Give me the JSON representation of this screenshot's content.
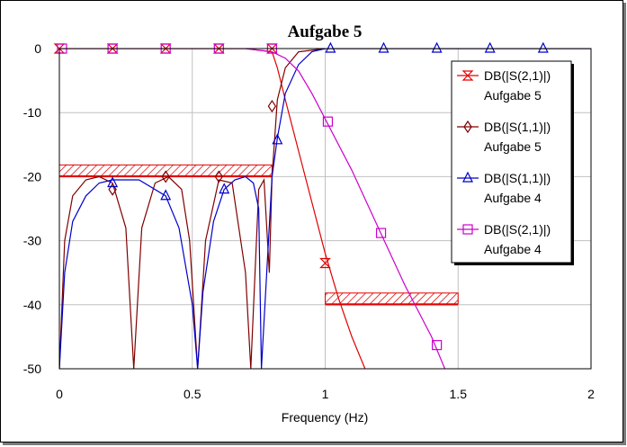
{
  "chart_data": {
    "type": "line",
    "title": "Aufgabe 5",
    "xlabel": "Frequency (Hz)",
    "ylabel": "",
    "xlim": [
      0,
      2
    ],
    "ylim": [
      -50,
      0
    ],
    "x_ticks": [
      "0",
      "0.5",
      "1",
      "1.5",
      "2"
    ],
    "y_ticks": [
      "0",
      "-10",
      "-20",
      "-30",
      "-40",
      "-50"
    ],
    "grid": true,
    "legend_position": "top-right",
    "series": [
      {
        "name": "DB(|S(2,1)|)",
        "sub": "Aufgabe 5",
        "color": "#e00000",
        "marker": "hourglass",
        "x": [
          0,
          0.7,
          0.8,
          0.82,
          0.85,
          0.9,
          0.95,
          1.0,
          1.05,
          1.1,
          1.15
        ],
        "y": [
          0,
          0,
          -0.5,
          -3,
          -8,
          -16,
          -24,
          -32,
          -39,
          -45,
          -50
        ],
        "markers": [
          [
            0,
            0
          ],
          [
            0.2,
            0
          ],
          [
            0.4,
            0
          ],
          [
            0.6,
            0
          ],
          [
            0.8,
            0
          ],
          [
            1.0,
            -33.5
          ]
        ]
      },
      {
        "name": "DB(|S(1,1)|)",
        "sub": "Aufgabe 5",
        "color": "#800000",
        "marker": "diamond",
        "x": [
          0,
          0.02,
          0.05,
          0.1,
          0.15,
          0.2,
          0.25,
          0.28,
          0.31,
          0.36,
          0.41,
          0.46,
          0.49,
          0.52,
          0.55,
          0.6,
          0.65,
          0.7,
          0.72,
          0.75,
          0.77,
          0.79,
          0.8,
          0.82,
          0.85,
          0.9,
          1.0,
          2.0
        ],
        "y": [
          -50,
          -30,
          -23,
          -20.5,
          -20,
          -21,
          -28,
          -50,
          -28,
          -21,
          -20,
          -22,
          -30,
          -50,
          -30,
          -20.5,
          -21,
          -35,
          -50,
          -22,
          -20.5,
          -35,
          -20,
          -8,
          -3,
          -0.5,
          0,
          0
        ],
        "markers": [
          [
            0.2,
            -22
          ],
          [
            0.4,
            -20
          ],
          [
            0.6,
            -20
          ],
          [
            0.8,
            -9
          ]
        ]
      },
      {
        "name": "DB(|S(1,1)|)",
        "sub": "Aufgabe 4",
        "color": "#0000cc",
        "marker": "triangle",
        "x": [
          0,
          0.02,
          0.05,
          0.1,
          0.15,
          0.2,
          0.3,
          0.4,
          0.45,
          0.5,
          0.52,
          0.54,
          0.58,
          0.62,
          0.66,
          0.7,
          0.73,
          0.75,
          0.76,
          0.78,
          0.8,
          0.82,
          0.85,
          0.9,
          0.95,
          1.0,
          2.0
        ],
        "y": [
          -50,
          -35,
          -27,
          -23,
          -21,
          -20.5,
          -20.5,
          -23,
          -28,
          -40,
          -50,
          -38,
          -27,
          -22,
          -20.5,
          -20,
          -21,
          -25,
          -50,
          -35,
          -20,
          -14,
          -7,
          -2.5,
          -0.5,
          0,
          0
        ],
        "markers": [
          [
            0.2,
            -21
          ],
          [
            0.4,
            -23
          ],
          [
            0.62,
            -22
          ],
          [
            0.82,
            -14.3
          ],
          [
            1.02,
            0
          ],
          [
            1.22,
            0
          ],
          [
            1.42,
            0
          ],
          [
            1.62,
            0
          ],
          [
            1.82,
            0
          ]
        ]
      },
      {
        "name": "DB(|S(2,1)|)",
        "sub": "Aufgabe 4",
        "color": "#cc00cc",
        "marker": "square",
        "x": [
          0,
          0.7,
          0.8,
          0.85,
          0.9,
          0.95,
          1.0,
          1.1,
          1.2,
          1.3,
          1.4,
          1.45
        ],
        "y": [
          0,
          0,
          -0.5,
          -1.5,
          -3.5,
          -7,
          -11,
          -19,
          -28,
          -37,
          -45,
          -50
        ],
        "markers": [
          [
            0.01,
            0
          ],
          [
            0.2,
            0
          ],
          [
            0.4,
            0
          ],
          [
            0.6,
            0
          ],
          [
            0.8,
            0
          ],
          [
            1.01,
            -11.4
          ],
          [
            1.21,
            -28.8
          ],
          [
            1.42,
            -46.3
          ]
        ]
      }
    ],
    "masks": [
      {
        "x": [
          0,
          0.8
        ],
        "y": -20
      },
      {
        "x": [
          1.0,
          1.5
        ],
        "y": -40
      }
    ]
  }
}
